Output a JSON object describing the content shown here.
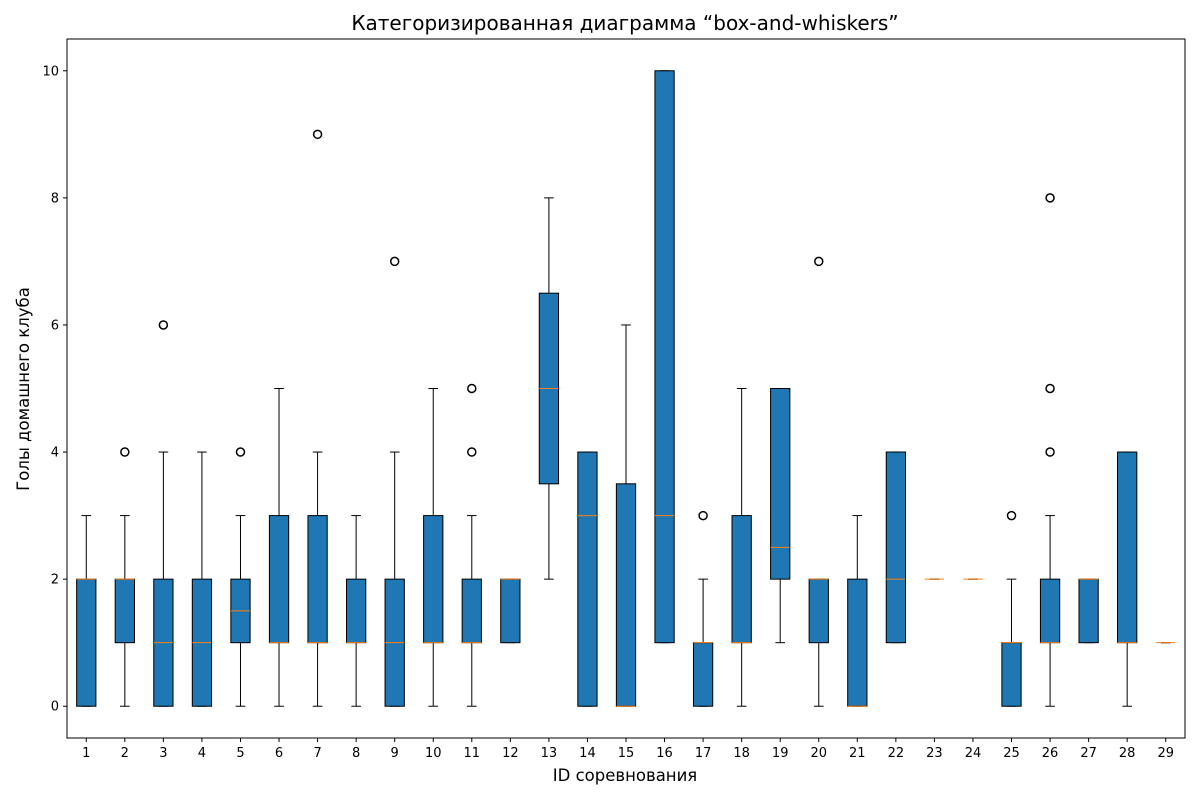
{
  "chart_data": {
    "type": "boxplot",
    "title": "Категоризированная диаграмма “box-and-whiskers”",
    "xlabel": "ID соревнования",
    "ylabel": "Голы домашнего клуба",
    "ylim": [
      -0.5,
      10.5
    ],
    "yticks": [
      0,
      2,
      4,
      6,
      8,
      10
    ],
    "grid": false,
    "colors": {
      "box_fill": "#1f77b4",
      "box_edge": "#000000",
      "median": "#ff7f0e",
      "whisker": "#000000",
      "flier": "#000000"
    },
    "categories": [
      "1",
      "2",
      "3",
      "4",
      "5",
      "6",
      "7",
      "8",
      "9",
      "10",
      "11",
      "12",
      "13",
      "14",
      "15",
      "16",
      "17",
      "18",
      "19",
      "20",
      "21",
      "22",
      "23",
      "24",
      "25",
      "26",
      "27",
      "28",
      "29"
    ],
    "boxes": [
      {
        "id": "1",
        "whislo": 0,
        "q1": 0,
        "med": 2,
        "q3": 2,
        "whishi": 3,
        "fliers": []
      },
      {
        "id": "2",
        "whislo": 0,
        "q1": 1,
        "med": 2,
        "q3": 2,
        "whishi": 3,
        "fliers": [
          4
        ]
      },
      {
        "id": "3",
        "whislo": 0,
        "q1": 0,
        "med": 1,
        "q3": 2,
        "whishi": 4,
        "fliers": [
          6
        ]
      },
      {
        "id": "4",
        "whislo": 0,
        "q1": 0,
        "med": 1,
        "q3": 2,
        "whishi": 4,
        "fliers": []
      },
      {
        "id": "5",
        "whislo": 0,
        "q1": 1,
        "med": 1.5,
        "q3": 2,
        "whishi": 3,
        "fliers": [
          4
        ]
      },
      {
        "id": "6",
        "whislo": 0,
        "q1": 1,
        "med": 1,
        "q3": 3,
        "whishi": 5,
        "fliers": []
      },
      {
        "id": "7",
        "whislo": 0,
        "q1": 1,
        "med": 1,
        "q3": 3,
        "whishi": 4,
        "fliers": [
          9
        ]
      },
      {
        "id": "8",
        "whislo": 0,
        "q1": 1,
        "med": 1,
        "q3": 2,
        "whishi": 3,
        "fliers": []
      },
      {
        "id": "9",
        "whislo": 0,
        "q1": 0,
        "med": 1,
        "q3": 2,
        "whishi": 4,
        "fliers": [
          7
        ]
      },
      {
        "id": "10",
        "whislo": 0,
        "q1": 1,
        "med": 1,
        "q3": 3,
        "whishi": 5,
        "fliers": []
      },
      {
        "id": "11",
        "whislo": 0,
        "q1": 1,
        "med": 1,
        "q3": 2,
        "whishi": 3,
        "fliers": [
          4,
          5
        ]
      },
      {
        "id": "12",
        "whislo": 1,
        "q1": 1,
        "med": 2,
        "q3": 2,
        "whishi": 2,
        "fliers": []
      },
      {
        "id": "13",
        "whislo": 2,
        "q1": 3.5,
        "med": 5,
        "q3": 6.5,
        "whishi": 8,
        "fliers": []
      },
      {
        "id": "14",
        "whislo": 0,
        "q1": 0,
        "med": 3,
        "q3": 4,
        "whishi": 4,
        "fliers": []
      },
      {
        "id": "15",
        "whislo": 0,
        "q1": 0,
        "med": 0,
        "q3": 3.5,
        "whishi": 6,
        "fliers": []
      },
      {
        "id": "16",
        "whislo": 1,
        "q1": 1,
        "med": 3,
        "q3": 10,
        "whishi": 10,
        "fliers": []
      },
      {
        "id": "17",
        "whislo": 0,
        "q1": 0,
        "med": 1,
        "q3": 1,
        "whishi": 2,
        "fliers": [
          3
        ]
      },
      {
        "id": "18",
        "whislo": 0,
        "q1": 1,
        "med": 1,
        "q3": 3,
        "whishi": 5,
        "fliers": []
      },
      {
        "id": "19",
        "whislo": 1,
        "q1": 2,
        "med": 2.5,
        "q3": 5,
        "whishi": 5,
        "fliers": []
      },
      {
        "id": "20",
        "whislo": 0,
        "q1": 1,
        "med": 2,
        "q3": 2,
        "whishi": 2,
        "fliers": [
          7
        ]
      },
      {
        "id": "21",
        "whislo": 0,
        "q1": 0,
        "med": 0,
        "q3": 2,
        "whishi": 3,
        "fliers": []
      },
      {
        "id": "22",
        "whislo": 1,
        "q1": 1,
        "med": 2,
        "q3": 4,
        "whishi": 4,
        "fliers": []
      },
      {
        "id": "23",
        "whislo": 2,
        "q1": 2,
        "med": 2,
        "q3": 2,
        "whishi": 2,
        "fliers": []
      },
      {
        "id": "24",
        "whislo": 2,
        "q1": 2,
        "med": 2,
        "q3": 2,
        "whishi": 2,
        "fliers": []
      },
      {
        "id": "25",
        "whislo": 0,
        "q1": 0,
        "med": 1,
        "q3": 1,
        "whishi": 2,
        "fliers": [
          3
        ]
      },
      {
        "id": "26",
        "whislo": 0,
        "q1": 1,
        "med": 1,
        "q3": 2,
        "whishi": 3,
        "fliers": [
          4,
          5,
          8
        ]
      },
      {
        "id": "27",
        "whislo": 1,
        "q1": 1,
        "med": 2,
        "q3": 2,
        "whishi": 2,
        "fliers": []
      },
      {
        "id": "28",
        "whislo": 0,
        "q1": 1,
        "med": 1,
        "q3": 4,
        "whishi": 4,
        "fliers": []
      },
      {
        "id": "29",
        "whislo": 1,
        "q1": 1,
        "med": 1,
        "q3": 1,
        "whishi": 1,
        "fliers": []
      }
    ]
  }
}
